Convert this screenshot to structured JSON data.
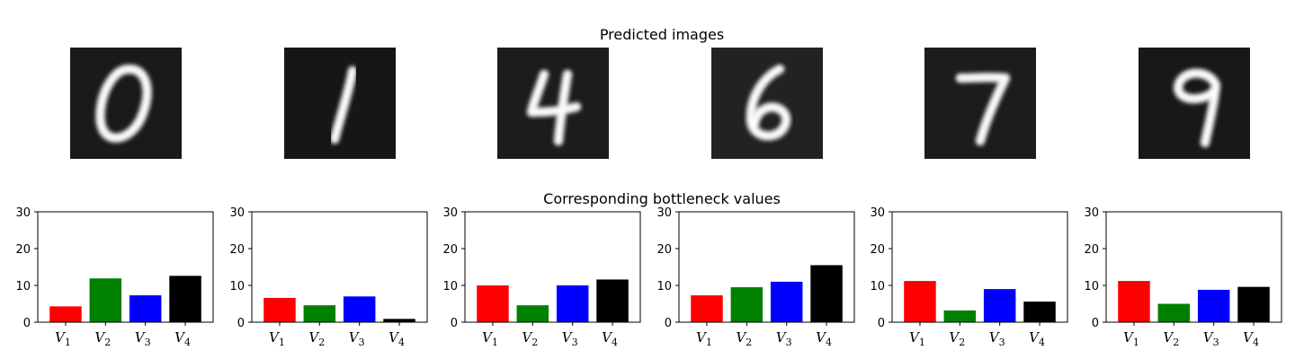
{
  "titles": {
    "top": "Predicted images",
    "bottom": "Corresponding bottleneck values"
  },
  "digits": [
    {
      "digit": "0",
      "background": "#1a1a1a"
    },
    {
      "digit": "1",
      "background": "#161616"
    },
    {
      "digit": "4",
      "background": "#1c1c1c"
    },
    {
      "digit": "6",
      "background": "#222222"
    },
    {
      "digit": "7",
      "background": "#1c1c1c"
    },
    {
      "digit": "9",
      "background": "#181818"
    }
  ],
  "chart_data": [
    {
      "type": "bar",
      "categories": [
        "V1",
        "V2",
        "V3",
        "V4"
      ],
      "values": [
        4.3,
        11.9,
        7.3,
        12.6
      ],
      "colors": [
        "#ff0000",
        "#008000",
        "#0000ff",
        "#000000"
      ],
      "ylim": [
        0,
        30
      ],
      "yticks": [
        0,
        10,
        20,
        30
      ]
    },
    {
      "type": "bar",
      "categories": [
        "V1",
        "V2",
        "V3",
        "V4"
      ],
      "values": [
        6.6,
        4.6,
        7.0,
        0.9
      ],
      "colors": [
        "#ff0000",
        "#008000",
        "#0000ff",
        "#000000"
      ],
      "ylim": [
        0,
        30
      ],
      "yticks": [
        0,
        10,
        20,
        30
      ]
    },
    {
      "type": "bar",
      "categories": [
        "V1",
        "V2",
        "V3",
        "V4"
      ],
      "values": [
        10.0,
        4.6,
        10.0,
        11.6
      ],
      "colors": [
        "#ff0000",
        "#008000",
        "#0000ff",
        "#000000"
      ],
      "ylim": [
        0,
        30
      ],
      "yticks": [
        0,
        10,
        20,
        30
      ]
    },
    {
      "type": "bar",
      "categories": [
        "V1",
        "V2",
        "V3",
        "V4"
      ],
      "values": [
        7.3,
        9.5,
        11.0,
        15.5
      ],
      "colors": [
        "#ff0000",
        "#008000",
        "#0000ff",
        "#000000"
      ],
      "ylim": [
        0,
        30
      ],
      "yticks": [
        0,
        10,
        20,
        30
      ]
    },
    {
      "type": "bar",
      "categories": [
        "V1",
        "V2",
        "V3",
        "V4"
      ],
      "values": [
        11.2,
        3.2,
        9.0,
        5.6
      ],
      "colors": [
        "#ff0000",
        "#008000",
        "#0000ff",
        "#000000"
      ],
      "ylim": [
        0,
        30
      ],
      "yticks": [
        0,
        10,
        20,
        30
      ]
    },
    {
      "type": "bar",
      "categories": [
        "V1",
        "V2",
        "V3",
        "V4"
      ],
      "values": [
        11.2,
        5.0,
        8.8,
        9.6
      ],
      "colors": [
        "#ff0000",
        "#008000",
        "#0000ff",
        "#000000"
      ],
      "ylim": [
        0,
        30
      ],
      "yticks": [
        0,
        10,
        20,
        30
      ]
    }
  ]
}
